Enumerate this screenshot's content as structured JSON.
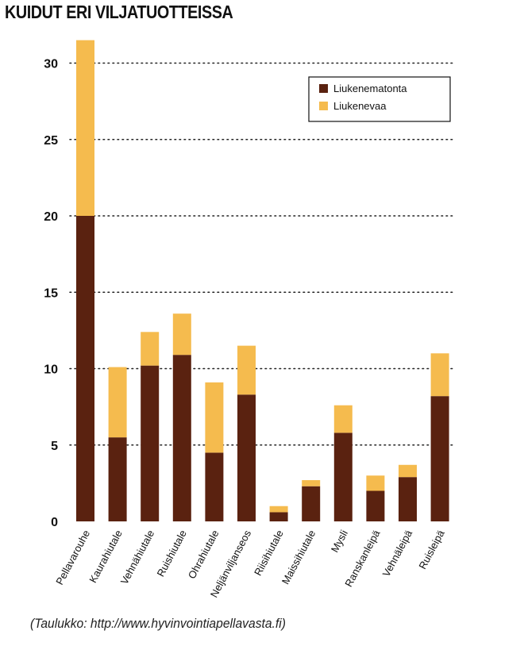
{
  "chart_data": {
    "type": "bar",
    "stacked": true,
    "title": "KUIDUT ERI VILJATUOTTEISSA",
    "categories": [
      "Pellavarouhe",
      "Kaurahiutale",
      "Vehnähiutale",
      "Ruishiutale",
      "Ohrahiutale",
      "Neljänviljanseos",
      "Riisihiutale",
      "Maissihiutale",
      "Mysli",
      "Ranskanleipä",
      "Vehnäleipä",
      "Ruisleipä"
    ],
    "series": [
      {
        "name": "Liukenematonta",
        "color": "#5a2210",
        "values": [
          20,
          5.5,
          10.2,
          10.9,
          4.5,
          8.3,
          0.6,
          2.3,
          5.8,
          2.0,
          2.9,
          8.2
        ]
      },
      {
        "name": "Liukenevaa",
        "color": "#f5bb4e",
        "values": [
          11.5,
          4.6,
          2.2,
          2.7,
          4.6,
          3.2,
          0.4,
          0.4,
          1.8,
          1.0,
          0.8,
          2.8
        ]
      }
    ],
    "yticks": [
      0,
      5,
      10,
      15,
      20,
      25,
      30
    ],
    "ylim": [
      0,
      31.5
    ],
    "grid": "dotted-horizontal",
    "legend_position": "top-right"
  },
  "source_note": "(Taulukko: http://www.hyvinvointiapellavasta.fi)"
}
